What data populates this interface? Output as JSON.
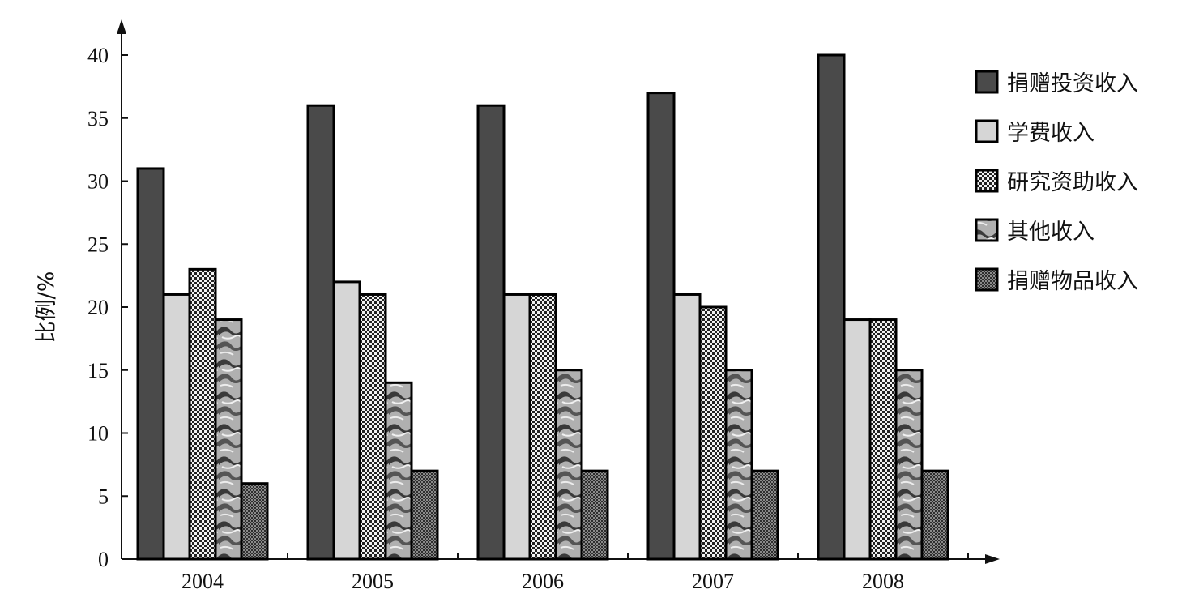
{
  "chart_data": {
    "type": "bar",
    "title": "",
    "xlabel": "",
    "ylabel": "比例/%",
    "ylim": [
      0,
      40
    ],
    "yticks": [
      0,
      5,
      10,
      15,
      20,
      25,
      30,
      35,
      40
    ],
    "categories": [
      "2004",
      "2005",
      "2006",
      "2007",
      "2008"
    ],
    "grid": false,
    "legend_position": "right",
    "series": [
      {
        "name": "捐赠投资收入",
        "values": [
          31,
          36,
          36,
          37,
          40
        ],
        "pattern": "solid-dark",
        "color": "#4a4a4a"
      },
      {
        "name": "学费收入",
        "values": [
          21,
          22,
          21,
          21,
          19
        ],
        "pattern": "solid-light",
        "color": "#d4d4d4"
      },
      {
        "name": "研究资助收入",
        "values": [
          23,
          21,
          21,
          20,
          19
        ],
        "pattern": "checker",
        "color": "#777777"
      },
      {
        "name": "其他收入",
        "values": [
          19,
          14,
          15,
          15,
          15
        ],
        "pattern": "marble",
        "color": "#9a9a9a"
      },
      {
        "name": "捐赠物品收入",
        "values": [
          6,
          7,
          7,
          7,
          7
        ],
        "pattern": "dots",
        "color": "#5a5a5a"
      }
    ]
  }
}
